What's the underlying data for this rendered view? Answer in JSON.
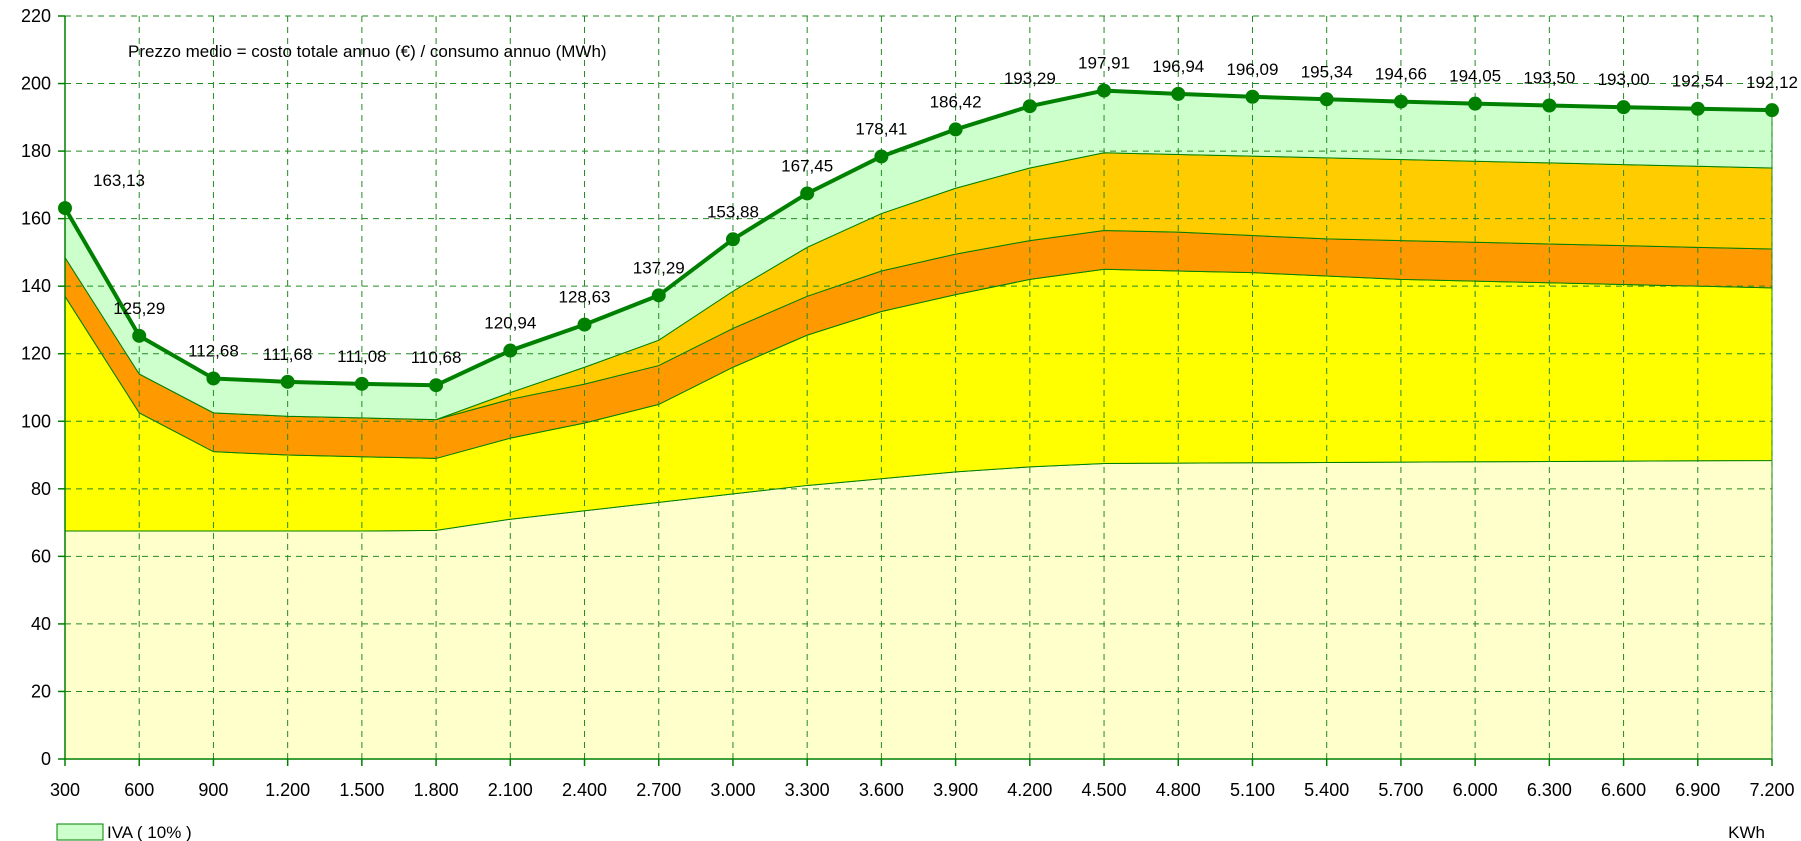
{
  "chart_data": {
    "type": "area",
    "annotation": "Prezzo medio = costo totale annuo (€) / consumo annuo (MWh)",
    "x_unit": "KWh",
    "x": [
      "300",
      "600",
      "900",
      "1.200",
      "1.500",
      "1.800",
      "2.100",
      "2.400",
      "2.700",
      "3.000",
      "3.300",
      "3.600",
      "3.900",
      "4.200",
      "4.500",
      "4.800",
      "5.100",
      "5.400",
      "5.700",
      "6.000",
      "6.300",
      "6.600",
      "6.900",
      "7.200"
    ],
    "ylim": [
      0,
      220
    ],
    "yticks": [
      0,
      20,
      40,
      60,
      80,
      100,
      120,
      140,
      160,
      180,
      200,
      220
    ],
    "grid": true,
    "stacked_boundaries": [
      {
        "color": "#FFFFCC",
        "values": [
          67.5,
          67.5,
          67.5,
          67.5,
          67.5,
          67.7,
          71,
          73.5,
          76,
          78.5,
          81,
          83,
          85,
          86.5,
          87.5,
          87.6,
          87.7,
          87.8,
          87.9,
          88,
          88.1,
          88.2,
          88.3,
          88.4
        ]
      },
      {
        "color": "#FFFF00",
        "values": [
          137,
          102.5,
          91,
          90,
          89.5,
          89,
          95,
          99.5,
          105,
          116,
          125.5,
          132.5,
          137.5,
          142,
          145,
          144.5,
          144,
          143,
          142,
          141.5,
          141,
          140.5,
          140,
          139.5
        ]
      },
      {
        "color": "#FF9900",
        "values": [
          148.5,
          114,
          102.5,
          101.5,
          101,
          100.5,
          106.5,
          111,
          116.5,
          127.5,
          137,
          144.5,
          149.5,
          153.5,
          156.5,
          156,
          155,
          154,
          153.5,
          153,
          152.5,
          152,
          151.5,
          151
        ]
      },
      {
        "color": "#FFCC00",
        "values": [
          148.5,
          114,
          102.5,
          101.5,
          101,
          100.5,
          108.5,
          116,
          124,
          138.5,
          151.5,
          161.5,
          169,
          175,
          179.5,
          179,
          178.5,
          178,
          177.5,
          177,
          176.5,
          176,
          175.5,
          175
        ]
      },
      {
        "color": "#CCFFCC",
        "values": [
          163.13,
          125.29,
          112.68,
          111.68,
          111.08,
          110.68,
          120.94,
          128.63,
          137.29,
          153.88,
          167.45,
          178.41,
          186.42,
          193.29,
          197.91,
          196.94,
          196.09,
          195.34,
          194.66,
          194.05,
          193.5,
          193.0,
          192.54,
          192.12
        ]
      }
    ],
    "series": [
      {
        "color": "#008000",
        "values": [
          163.13,
          125.29,
          112.68,
          111.68,
          111.08,
          110.68,
          120.94,
          128.63,
          137.29,
          153.88,
          167.45,
          178.41,
          186.42,
          193.29,
          197.91,
          196.94,
          196.09,
          195.34,
          194.66,
          194.05,
          193.5,
          193.0,
          192.54,
          192.12
        ],
        "labels": [
          "163,13",
          "125,29",
          "112,68",
          "111,68",
          "111,08",
          "110,68",
          "120,94",
          "128,63",
          "137,29",
          "153,88",
          "167,45",
          "178,41",
          "186,42",
          "193,29",
          "197,91",
          "196,94",
          "196,09",
          "195,34",
          "194,66",
          "194,05",
          "193,50",
          "193,00",
          "192,54",
          "192,12"
        ]
      }
    ],
    "legend": {
      "placement": "bottom-left",
      "entries": [
        {
          "name": "IVA ( 10% )",
          "color": "#CCFFCC"
        }
      ]
    }
  }
}
